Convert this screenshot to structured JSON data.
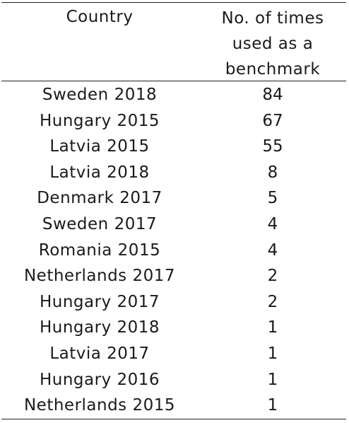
{
  "table": {
    "headers": {
      "country": "Country",
      "count_line1": "No. of times",
      "count_line2": "used as a",
      "count_line3": "benchmark"
    },
    "rows": [
      {
        "country": "Sweden 2018",
        "count": "84"
      },
      {
        "country": "Hungary 2015",
        "count": "67"
      },
      {
        "country": "Latvia 2015",
        "count": "55"
      },
      {
        "country": "Latvia 2018",
        "count": "8"
      },
      {
        "country": "Denmark 2017",
        "count": "5"
      },
      {
        "country": "Sweden 2017",
        "count": "4"
      },
      {
        "country": "Romania 2015",
        "count": "4"
      },
      {
        "country": "Netherlands 2017",
        "count": "2"
      },
      {
        "country": "Hungary 2017",
        "count": "2"
      },
      {
        "country": "Hungary 2018",
        "count": "1"
      },
      {
        "country": "Latvia 2017",
        "count": "1"
      },
      {
        "country": "Hungary 2016",
        "count": "1"
      },
      {
        "country": "Netherlands 2015",
        "count": "1"
      }
    ]
  }
}
